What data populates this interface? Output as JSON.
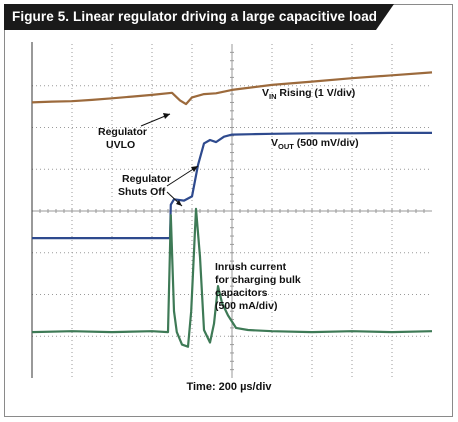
{
  "figure_title": "Figure 5. Linear regulator driving a large capacitive load",
  "colors": {
    "vin": "#9c6a3c",
    "vout": "#2e4a8e",
    "current": "#3e7a56",
    "grid": "#9a9a9a",
    "background": "#ffffff",
    "banner": "#1a1a1a"
  },
  "annotations": {
    "vin_label": "V",
    "vin_sub": "IN",
    "vin_rest": " Rising (1 V/div)",
    "vout_label": "V",
    "vout_sub": "OUT",
    "vout_rest": " (500 mV/div)",
    "uvlo_line1": "Regulator",
    "uvlo_line2": "UVLO",
    "shutoff_line1": "Regulator",
    "shutoff_line2": "Shuts Off",
    "inrush_line1": "Inrush current",
    "inrush_line2": "for charging bulk",
    "inrush_line3": "capacitors",
    "inrush_line4": "(500 mA/div)"
  },
  "chart_data": {
    "type": "line",
    "title": "Figure 5. Linear regulator driving a large capacitive load",
    "xlabel": "Time: 200 µs/div",
    "xlim": [
      0,
      10
    ],
    "ylim": [
      0,
      8
    ],
    "grid": true,
    "grid_divisions": {
      "x": 10,
      "y": 8
    },
    "series": [
      {
        "name": "VIN Rising (1 V/div)",
        "x": [
          0,
          0.5,
          1,
          1.5,
          2,
          2.5,
          3,
          3.5,
          3.7,
          3.85,
          4.0,
          4.3,
          4.6,
          5,
          6,
          7,
          8,
          9,
          10
        ],
        "y": [
          6.6,
          6.62,
          6.63,
          6.66,
          6.7,
          6.74,
          6.78,
          6.83,
          6.65,
          6.56,
          6.72,
          6.8,
          6.82,
          6.9,
          7.02,
          7.1,
          7.18,
          7.25,
          7.32
        ]
      },
      {
        "name": "VOUT (500 mV/div)",
        "x": [
          0,
          1,
          2,
          3,
          3.45,
          3.47,
          3.55,
          3.8,
          4.0,
          4.05,
          4.15,
          4.3,
          4.45,
          4.6,
          4.8,
          5.0,
          5.5,
          6,
          7,
          8,
          9,
          10
        ],
        "y": [
          3.35,
          3.35,
          3.35,
          3.35,
          3.35,
          4.15,
          4.28,
          4.25,
          4.35,
          4.6,
          5.1,
          5.62,
          5.7,
          5.65,
          5.78,
          5.83,
          5.84,
          5.85,
          5.86,
          5.86,
          5.87,
          5.87
        ]
      },
      {
        "name": "Inrush current for charging bulk capacitors (500 mA/div)",
        "x": [
          0,
          1,
          2,
          3,
          3.4,
          3.47,
          3.55,
          3.62,
          3.75,
          3.9,
          3.98,
          4.1,
          4.2,
          4.3,
          4.45,
          4.55,
          4.65,
          4.75,
          4.9,
          5.1,
          5.4,
          6,
          7,
          8,
          9,
          10
        ],
        "y": [
          1.1,
          1.12,
          1.1,
          1.12,
          1.1,
          3.9,
          1.6,
          1.1,
          0.8,
          0.75,
          1.6,
          4.05,
          2.9,
          1.15,
          0.85,
          1.3,
          2.2,
          1.8,
          1.5,
          1.2,
          1.15,
          1.12,
          1.1,
          1.12,
          1.1,
          1.12
        ]
      }
    ]
  }
}
